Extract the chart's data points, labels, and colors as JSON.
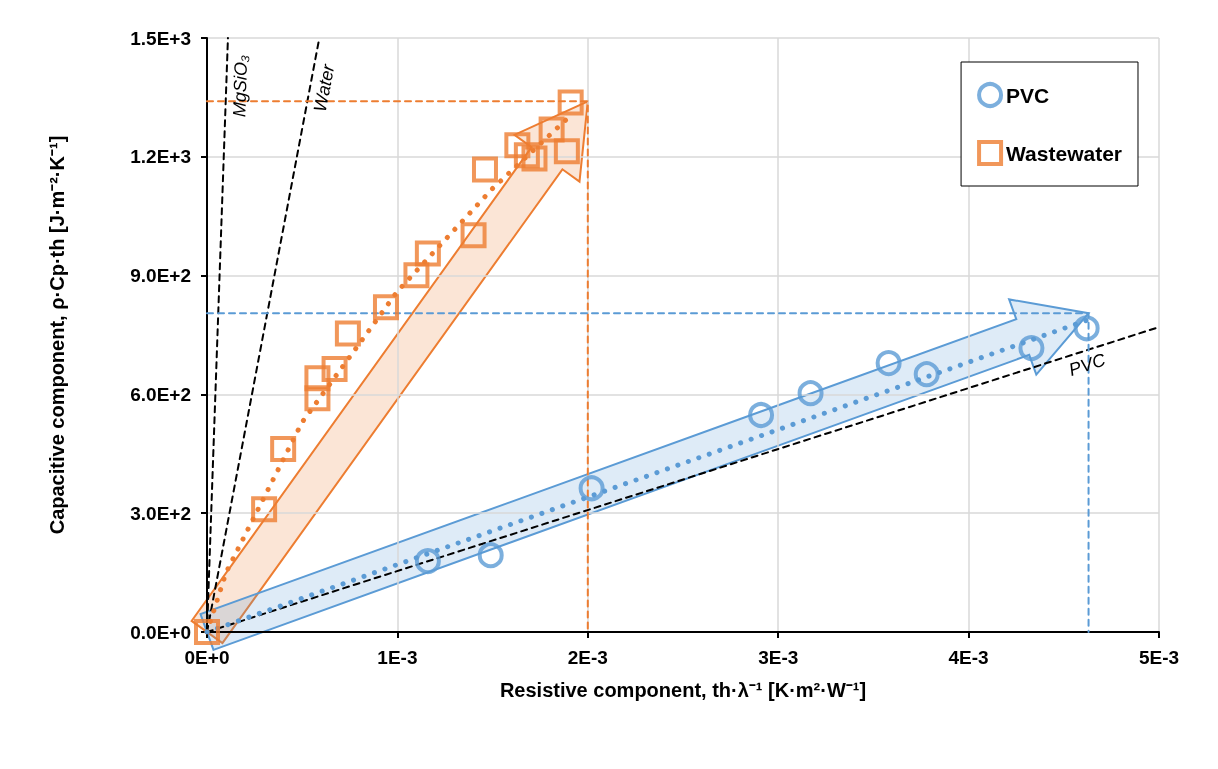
{
  "chart_data": {
    "type": "scatter",
    "xlabel": "Resistive component, th·λ⁻¹ [K·m²·W⁻¹]",
    "ylabel": "Capacitive component, ρ·Cp·th [J·m⁻²·K⁻¹]",
    "xlim": [
      0,
      0.005
    ],
    "ylim": [
      0,
      1500
    ],
    "xticks": [
      {
        "value": 0,
        "label": "0E+0"
      },
      {
        "value": 0.001,
        "label": "1E-3"
      },
      {
        "value": 0.002,
        "label": "2E-3"
      },
      {
        "value": 0.003,
        "label": "3E-3"
      },
      {
        "value": 0.004,
        "label": "4E-3"
      },
      {
        "value": 0.005,
        "label": "5E-3"
      }
    ],
    "yticks": [
      {
        "value": 0,
        "label": "0.0E+0"
      },
      {
        "value": 300,
        "label": "3.0E+2"
      },
      {
        "value": 600,
        "label": "6.0E+2"
      },
      {
        "value": 900,
        "label": "9.0E+2"
      },
      {
        "value": 1200,
        "label": "1.2E+3"
      },
      {
        "value": 1500,
        "label": "1.5E+3"
      }
    ],
    "grid": true,
    "legend": "top right",
    "series": [
      {
        "type": "line",
        "name": "MgSiO₃",
        "color": "#000000",
        "line_style": "dashed",
        "x": [
          0,
          0.00011
        ],
        "values": [
          0,
          1500
        ]
      },
      {
        "type": "line",
        "name": "Water",
        "color": "#000000",
        "line_style": "dashed",
        "x": [
          0,
          0.00059
        ],
        "values": [
          0,
          1500
        ]
      },
      {
        "type": "line",
        "name": "PVC",
        "color": "#000000",
        "line_style": "dashed",
        "x": [
          0,
          0.005
        ],
        "values": [
          0,
          770
        ]
      },
      {
        "type": "line",
        "color": "#ed7d31",
        "line_style": "dashed",
        "x": [
          0,
          0.002,
          0.002
        ],
        "values": [
          1340,
          1340,
          0
        ]
      },
      {
        "type": "line",
        "color": "#5b9bd5",
        "line_style": "dashed",
        "x": [
          0,
          0.00463,
          0.00463
        ],
        "values": [
          805,
          805,
          0
        ]
      },
      {
        "type": "line",
        "color": "#ed7d31",
        "line_style": "dotted",
        "x": [
          0,
          0.0001,
          0.0005,
          0.001,
          0.0015,
          0.0019
        ],
        "values": [
          0,
          150,
          530,
          860,
          1120,
          1300
        ]
      },
      {
        "type": "line",
        "color": "#5b9bd5",
        "line_style": "dotted",
        "x": [
          0,
          0.00462
        ],
        "values": [
          0,
          787
        ]
      },
      {
        "type": "scatter",
        "name": "PVC",
        "color": "#5b9bd5",
        "marker": "circle",
        "x": [
          0.00116,
          0.00149,
          0.00202,
          0.00291,
          0.00317,
          0.00358,
          0.00378,
          0.00433,
          0.00462
        ],
        "values": [
          179,
          194,
          363,
          548,
          603,
          679,
          651,
          717,
          767
        ]
      },
      {
        "type": "scatter",
        "name": "Wastewater",
        "color": "#ed7d31",
        "marker": "square",
        "x": [
          0,
          0.0003,
          0.0004,
          0.00058,
          0.00058,
          0.00067,
          0.00074,
          0.00094,
          0.0011,
          0.00116,
          0.0014,
          0.00146,
          0.00163,
          0.00168,
          0.00172,
          0.00181,
          0.00189,
          0.00191
        ],
        "values": [
          0,
          310,
          462,
          590,
          641,
          664,
          754,
          820,
          901,
          956,
          1002,
          1168,
          1229,
          1204,
          1196,
          1269,
          1214,
          1337
        ]
      }
    ]
  }
}
